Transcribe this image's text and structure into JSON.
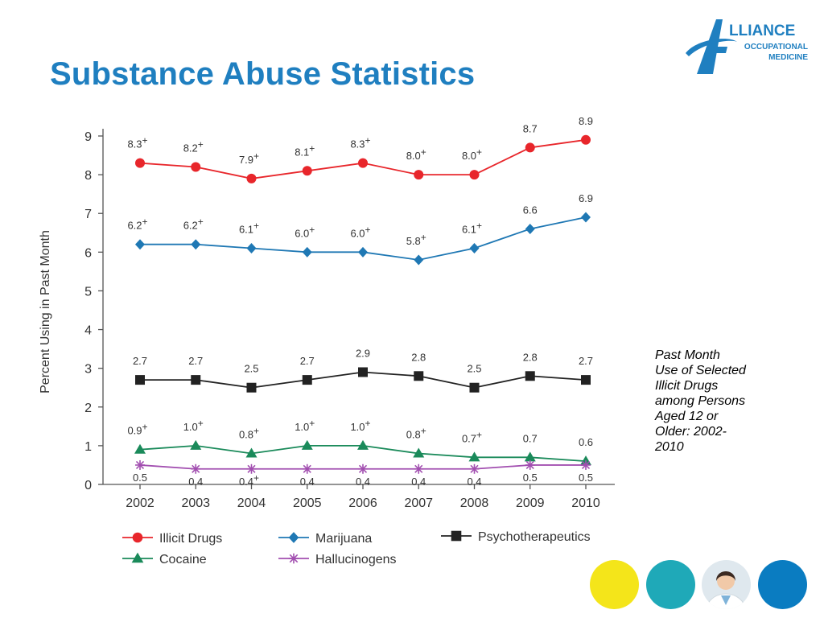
{
  "slide": {
    "title": "Substance Abuse Statistics",
    "caption_lines": [
      "Past Month",
      "Use of Selected",
      "Illicit Drugs",
      "among Persons",
      "Aged 12 or",
      "Older: 2002-",
      "2010"
    ]
  },
  "logo": {
    "letter": "A",
    "line1": "LLIANCE",
    "line2": "OCCUPATIONAL",
    "line3": "MEDICINE",
    "color": "#1f7fc0"
  },
  "colors": {
    "title": "#1f7fc0",
    "deco_yellow": "#f4e51a",
    "deco_teal": "#1fa9b8",
    "deco_blue": "#0a7cc1"
  },
  "chart_data": {
    "type": "line",
    "title": "",
    "xlabel": "",
    "ylabel": "Percent Using in Past Month",
    "ylim": [
      0,
      9
    ],
    "yticks": [
      0,
      1,
      2,
      3,
      4,
      5,
      6,
      7,
      8,
      9
    ],
    "categories": [
      "2002",
      "2003",
      "2004",
      "2005",
      "2006",
      "2007",
      "2008",
      "2009",
      "2010"
    ],
    "grid": false,
    "legend_position": "bottom",
    "series": [
      {
        "name": "Illicit Drugs",
        "color": "#e8262b",
        "marker": "circle",
        "values": [
          8.3,
          8.2,
          7.9,
          8.1,
          8.3,
          8.0,
          8.0,
          8.7,
          8.9
        ],
        "labels": [
          "8.3",
          "8.2",
          "7.9",
          "8.1",
          "8.3",
          "8.0",
          "8.0",
          "8.7",
          "8.9"
        ],
        "plus": [
          true,
          true,
          true,
          true,
          true,
          true,
          true,
          false,
          false
        ]
      },
      {
        "name": "Marijuana",
        "color": "#1f78b4",
        "marker": "diamond",
        "values": [
          6.2,
          6.2,
          6.1,
          6.0,
          6.0,
          5.8,
          6.1,
          6.6,
          6.9
        ],
        "labels": [
          "6.2",
          "6.2",
          "6.1",
          "6.0",
          "6.0",
          "5.8",
          "6.1",
          "6.6",
          "6.9"
        ],
        "plus": [
          true,
          true,
          true,
          true,
          true,
          true,
          true,
          false,
          false
        ]
      },
      {
        "name": "Psychotherapeutics",
        "color": "#222222",
        "marker": "square",
        "values": [
          2.7,
          2.7,
          2.5,
          2.7,
          2.9,
          2.8,
          2.5,
          2.8,
          2.7
        ],
        "labels": [
          "2.7",
          "2.7",
          "2.5",
          "2.7",
          "2.9",
          "2.8",
          "2.5",
          "2.8",
          "2.7"
        ],
        "plus": [
          false,
          false,
          false,
          false,
          false,
          false,
          false,
          false,
          false
        ]
      },
      {
        "name": "Cocaine",
        "color": "#1a8a5a",
        "marker": "triangle",
        "values": [
          0.9,
          1.0,
          0.8,
          1.0,
          1.0,
          0.8,
          0.7,
          0.7,
          0.6
        ],
        "labels": [
          "0.9",
          "1.0",
          "0.8",
          "1.0",
          "1.0",
          "0.8",
          "0.7",
          "0.7",
          "0.6"
        ],
        "plus": [
          true,
          true,
          true,
          true,
          true,
          true,
          true,
          false,
          false
        ]
      },
      {
        "name": "Hallucinogens",
        "color": "#a24fb0",
        "marker": "star",
        "values": [
          0.5,
          0.4,
          0.4,
          0.4,
          0.4,
          0.4,
          0.4,
          0.5,
          0.5
        ],
        "labels": [
          "0.5",
          "0.4",
          "0.4",
          "0.4",
          "0.4",
          "0.4",
          "0.4",
          "0.5",
          "0.5"
        ],
        "plus": [
          false,
          false,
          true,
          false,
          false,
          false,
          false,
          false,
          false
        ]
      }
    ]
  }
}
